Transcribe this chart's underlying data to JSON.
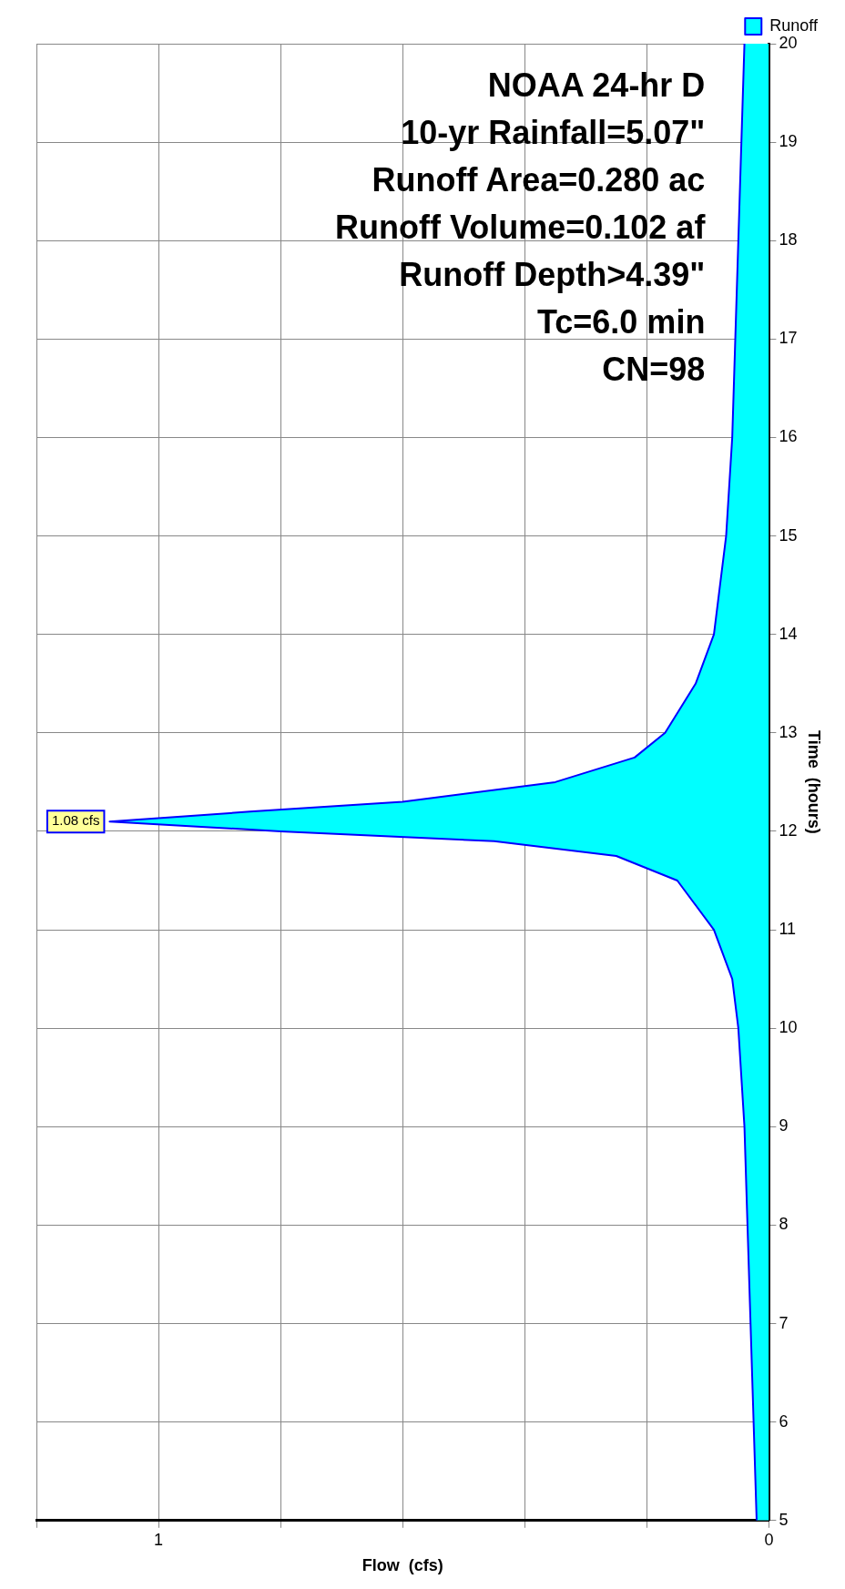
{
  "chart_data": {
    "type": "area",
    "orientation": "horizontal",
    "xlabel": "Flow  (cfs)",
    "ylabel": "Time  (hours)",
    "ylim": [
      5,
      20
    ],
    "yticks": [
      5,
      6,
      7,
      8,
      9,
      10,
      11,
      12,
      13,
      14,
      15,
      16,
      17,
      18,
      19,
      20
    ],
    "xlim": [
      1.2,
      0
    ],
    "xticks": [
      0,
      {
        "value": 0.2,
        "label": null
      },
      {
        "value": 0.4,
        "label": null
      },
      {
        "value": 0.6,
        "label": null
      },
      {
        "value": 0.8,
        "label": null
      },
      1,
      {
        "value": 1.2,
        "label": null
      }
    ],
    "x": [
      5,
      6,
      7,
      8,
      9,
      10,
      10.5,
      11,
      11.5,
      11.75,
      11.9,
      12,
      12.1,
      12.2,
      12.3,
      12.5,
      12.75,
      13,
      13.5,
      14,
      15,
      16,
      17,
      18,
      19,
      20
    ],
    "series": [
      {
        "name": "Runoff",
        "color": "#00ffff",
        "values": [
          0.02,
          0.025,
          0.03,
          0.035,
          0.04,
          0.05,
          0.06,
          0.09,
          0.15,
          0.25,
          0.45,
          0.8,
          1.08,
          0.85,
          0.6,
          0.35,
          0.22,
          0.17,
          0.12,
          0.09,
          0.07,
          0.06,
          0.055,
          0.05,
          0.045,
          0.04
        ]
      }
    ],
    "grid": true,
    "legend": "top right",
    "marker": "none",
    "annotations": [
      "NOAA 24-hr D",
      "10-yr Rainfall=5.07\"",
      "Runoff Area=0.280 ac",
      "Runoff Volume=0.102 af",
      "Runoff Depth>4.39\"",
      "Tc=6.0 min",
      "CN=98",
      {
        "text": "1.08 cfs",
        "x": 1.08,
        "y": 12.1
      }
    ]
  }
}
